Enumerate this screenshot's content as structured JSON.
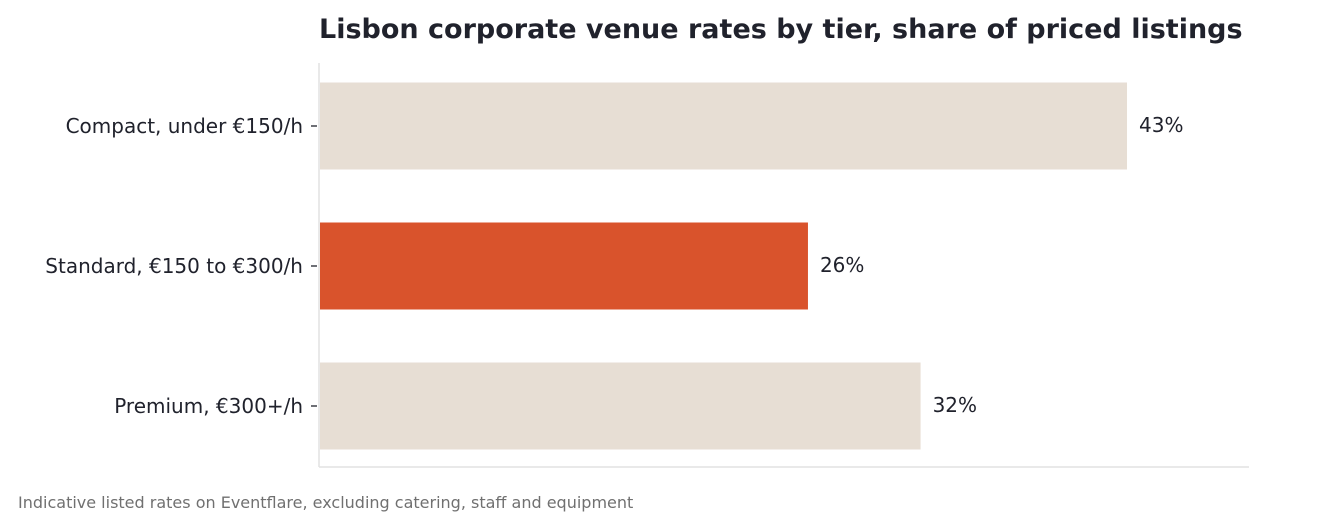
{
  "chart_data": {
    "type": "bar",
    "orientation": "horizontal",
    "title": "Lisbon corporate venue rates by tier, share of priced listings",
    "categories": [
      "Compact, under €150/h",
      "Standard, €150 to €300/h",
      "Premium, €300+/h"
    ],
    "values": [
      43,
      26,
      32
    ],
    "value_labels": [
      "43%",
      "26%",
      "32%"
    ],
    "highlight_index": 1,
    "xlim": [
      0,
      49.5
    ],
    "grid": false,
    "colors": {
      "base_bar": "#e7ded4",
      "highlight_bar": "#d9532c",
      "axis": "#e2e2e2"
    }
  },
  "caption": "Indicative listed rates on Eventflare, excluding catering, staff and equipment"
}
